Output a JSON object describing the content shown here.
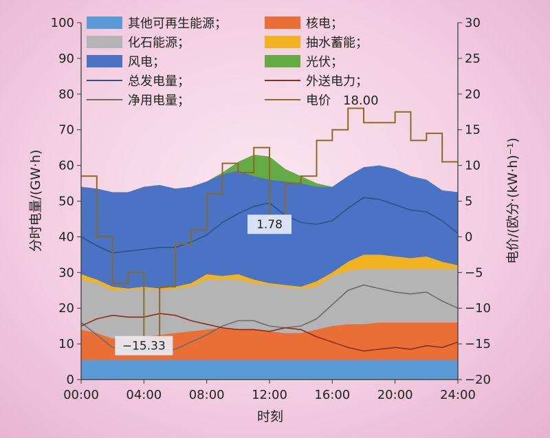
{
  "chart_data": {
    "type": "area",
    "xlabel": "时刻",
    "ylabel_left": "分时电量/(GW·h)",
    "ylabel_right": "电价/(欧分·(kW·h)⁻¹)",
    "x_ticks": [
      "00:00",
      "04:00",
      "08:00",
      "12:00",
      "16:00",
      "20:00",
      "24:00"
    ],
    "x_hours": [
      0,
      1,
      2,
      3,
      4,
      5,
      6,
      7,
      8,
      9,
      10,
      11,
      12,
      13,
      14,
      15,
      16,
      17,
      18,
      19,
      20,
      21,
      22,
      23,
      24
    ],
    "ylim_left": [
      0,
      100
    ],
    "ylim_right": [
      -20,
      30
    ],
    "y_ticks_left": [
      "0",
      "10",
      "20",
      "30",
      "40",
      "50",
      "60",
      "70",
      "80",
      "90",
      "100"
    ],
    "y_ticks_right": [
      "−20",
      "−15",
      "−10",
      "−5",
      "0",
      "5",
      "10",
      "15",
      "20",
      "25",
      "30"
    ],
    "legend": [
      {
        "label": "其他可再生能源；",
        "color": "#5b9bd5",
        "kind": "area"
      },
      {
        "label": "核电；",
        "color": "#e96f36",
        "kind": "area"
      },
      {
        "label": "化石能源；",
        "color": "#b4b4b4",
        "kind": "area"
      },
      {
        "label": "抽水蓄能；",
        "color": "#f2b320",
        "kind": "area"
      },
      {
        "label": "风电；",
        "color": "#4a72c5",
        "kind": "area"
      },
      {
        "label": "光伏；",
        "color": "#66aa44",
        "kind": "area"
      },
      {
        "label": "总发电量；",
        "color": "#2f4f8f",
        "kind": "line"
      },
      {
        "label": "外送电力；",
        "color": "#8b2e1a",
        "kind": "line"
      },
      {
        "label": "净用电量；",
        "color": "#6b6b6b",
        "kind": "line"
      },
      {
        "label": "电价　18.00",
        "color": "#8b6a23",
        "kind": "line"
      }
    ],
    "stacked_series_cumulative_top": [
      {
        "name": "其他可再生能源",
        "color": "#5b9bd5",
        "values": [
          5.5,
          5.5,
          5.5,
          5.5,
          5.5,
          5.5,
          5.5,
          5.5,
          5.5,
          5.5,
          5.5,
          5.5,
          5.5,
          5.5,
          5.5,
          5.5,
          5.5,
          5.5,
          5.5,
          5.5,
          5.5,
          5.5,
          5.5,
          5.5,
          5.5
        ]
      },
      {
        "name": "核电",
        "color": "#e96f36",
        "values": [
          14,
          13,
          11.5,
          12,
          12,
          12.5,
          13,
          13.5,
          14,
          14.5,
          14,
          14,
          13.5,
          13,
          13,
          14,
          15,
          15.5,
          15.5,
          16,
          16,
          16,
          16,
          16,
          16
        ]
      },
      {
        "name": "化石能源",
        "color": "#b4b4b4",
        "values": [
          28,
          27,
          25,
          25,
          25.5,
          25,
          25.5,
          26,
          28,
          28,
          28,
          27,
          26.5,
          26,
          25.5,
          26,
          29,
          30.5,
          31,
          31,
          31,
          31,
          31,
          31,
          31
        ]
      },
      {
        "name": "抽水蓄能",
        "color": "#f2b320",
        "values": [
          29.5,
          28,
          26,
          25.5,
          26,
          25.5,
          26,
          27,
          29.5,
          29,
          29.5,
          28,
          27,
          26.5,
          26,
          27.5,
          30,
          33,
          35,
          35,
          34.5,
          34,
          34.5,
          33,
          32
        ]
      },
      {
        "name": "风电",
        "color": "#4a72c5",
        "values": [
          54,
          53.5,
          52.5,
          52.5,
          54,
          54.5,
          53.5,
          54,
          55.5,
          57.5,
          58.5,
          57,
          56,
          55.5,
          55,
          54,
          54,
          57,
          59.5,
          60,
          59,
          57,
          56,
          53,
          52.5
        ]
      },
      {
        "name": "光伏",
        "color": "#66aa44",
        "values": [
          54,
          53.5,
          52.5,
          52.5,
          54,
          54.5,
          53.5,
          54,
          55.5,
          58,
          61,
          63,
          62.5,
          59,
          57,
          55,
          54,
          57,
          59.5,
          60,
          59,
          57,
          56,
          53,
          52.5
        ]
      }
    ],
    "lines": [
      {
        "name": "总发电量",
        "color": "#2f4f8f",
        "axis": "left",
        "values": [
          40,
          37.5,
          35.5,
          36,
          36.5,
          37,
          37,
          38.5,
          40.5,
          44,
          46.5,
          48.5,
          49.5,
          46,
          44,
          43.5,
          44.5,
          48,
          51,
          50.5,
          49,
          47.5,
          47,
          44.5,
          41
        ]
      },
      {
        "name": "净用电量",
        "color": "#6b6b6b",
        "axis": "left",
        "values": [
          16,
          12.5,
          9,
          8,
          8,
          8,
          8.5,
          10.5,
          12.5,
          15,
          16.5,
          16.5,
          15,
          14.5,
          15,
          17,
          21,
          25,
          26.5,
          25.5,
          24.5,
          24,
          24.5,
          22,
          20
        ]
      },
      {
        "name": "外送电力",
        "color": "#8b2e1a",
        "axis": "left",
        "values": [
          15,
          17,
          18,
          17.5,
          17.5,
          18.5,
          18,
          16.5,
          15.5,
          14.5,
          14,
          14,
          13.5,
          14.5,
          14,
          12,
          10.5,
          9,
          8,
          8.5,
          9,
          8.5,
          9.5,
          9,
          10.5
        ]
      },
      {
        "name": "电价",
        "color": "#8b6a23",
        "axis": "right",
        "step": true,
        "values": [
          8.5,
          0,
          -6.5,
          -5,
          -15.33,
          -7,
          -1,
          1,
          6,
          10.3,
          9,
          12.5,
          1.78,
          7.5,
          8.5,
          13.5,
          15,
          18,
          16,
          16,
          17.5,
          13.5,
          14.5,
          10.5,
          10.5
        ]
      }
    ],
    "annotations": [
      {
        "text": "1.78",
        "x_hour": 12,
        "y_left": 43.5
      },
      {
        "text": "−15.33",
        "x_hour": 4,
        "y_left": 9.5
      }
    ]
  }
}
